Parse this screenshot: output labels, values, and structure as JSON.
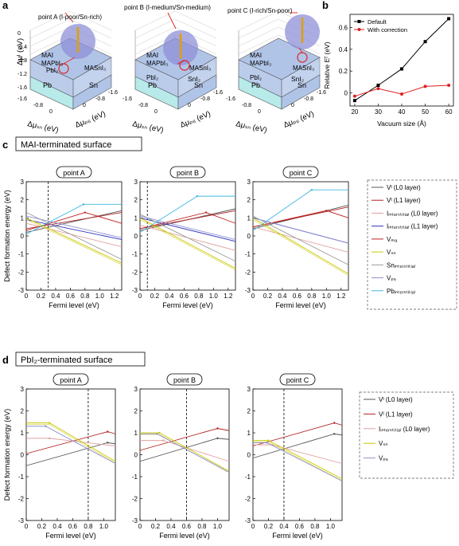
{
  "panel_labels": {
    "a": "a",
    "b": "b",
    "c": "c",
    "d": "d"
  },
  "phase_diagrams": [
    {
      "point_label": "point A (I-poor/Sn-rich)",
      "phases": {
        "mai": "MAI",
        "mapbi3": "MAPbI₃",
        "pbi2": "PbI₂",
        "masni3": "MASnI₃",
        "pb": "Pb",
        "sn": "Sn"
      },
      "z_axis_label": "Δμᴵ (eV)",
      "z_ticks": [
        "0",
        "-0.4",
        "-0.8",
        "-1.2",
        "-1.6"
      ],
      "sn_axis_label": "Δμₛₙ (eV)",
      "sn_ticks": [
        "-1.6",
        "-0.8",
        "0"
      ],
      "pb_axis_label": "Δμₚ₆ (eV)",
      "pb_ticks": [
        "0",
        "-0.8",
        "-1.6"
      ]
    },
    {
      "point_label": "point B (I-medium/Sn-medium)",
      "phases": {
        "mai": "MAI",
        "mapbi3": "MAPbI₃",
        "pbi2": "PbI₂",
        "masni3": "MASnI₃",
        "sni2": "SnI₂",
        "pb": "Pb",
        "sn": "Sn"
      },
      "sn_axis_label": "Δμₛₙ (eV)",
      "sn_ticks": [
        "-1.6",
        "-0.8",
        "0"
      ],
      "pb_axis_label": "Δμₚ₆ (eV)",
      "pb_ticks": [
        "0",
        "-0.8",
        "-1.6"
      ]
    },
    {
      "point_label": "point C (I-rich/Sn-poor)",
      "phases": {
        "mai": "MAI",
        "mapbi3": "MAPbI₃",
        "pbi2": "PbI₂",
        "masni3": "MASnI₃",
        "sni2": "SnI₂",
        "pb": "Pb",
        "sn": "Sn"
      },
      "sn_axis_label": "Δμₛₙ (eV)",
      "sn_ticks": [
        "-1.6",
        "-0.8",
        "0"
      ],
      "pb_axis_label": "Δμₚ₆ (eV)",
      "pb_ticks": [
        "0",
        "-0.8",
        "-1.6"
      ]
    }
  ],
  "section_c_title": "MAI-terminated surface",
  "section_d_title": "PbI₂-terminated surface",
  "colors": {
    "default": "#000000",
    "correction": "#e02020",
    "vi_l0": "#555555",
    "vi_l1": "#b02020",
    "ii_l0": "#e0a0a0",
    "ii_l1": "#3030c0",
    "vma": "#c02020",
    "vsn": "#c8c800",
    "sni": "#9a9a9a",
    "vpb": "#9090d0",
    "pbi": "#40b8e0",
    "phase_face": "#b0c4e8",
    "pb_face": "#b8eaea",
    "sphere": "#8f90d8",
    "marker": "#e02020"
  },
  "chart_data": [
    {
      "id": "b",
      "type": "line",
      "xlabel": "Vacuum size (Å)",
      "ylabel": "Relative Eᶠ (eV)",
      "x": [
        20,
        30,
        40,
        50,
        60
      ],
      "xlim": [
        18,
        62
      ],
      "ylim": [
        -0.12,
        0.72
      ],
      "xticks": [
        "20",
        "30",
        "40",
        "50",
        "60"
      ],
      "yticks": [
        "0",
        "0.2",
        "0.4",
        "0.6"
      ],
      "legend_position": "top-left",
      "series": [
        {
          "name": "Default",
          "values": [
            -0.07,
            0.07,
            0.22,
            0.47,
            0.68
          ]
        },
        {
          "name": "With correction",
          "values": [
            -0.03,
            0.04,
            -0.01,
            0.06,
            0.07
          ]
        }
      ]
    },
    {
      "id": "c",
      "type": "line",
      "ylabel": "Defect formation energy (eV)",
      "xlabel": "Fermi level (eV)",
      "xlim": [
        0,
        1.3
      ],
      "ylim": [
        -3,
        3
      ],
      "xticks": [
        "0",
        "0.2",
        "0.4",
        "0.6",
        "0.8",
        "1.0",
        "1.2"
      ],
      "yticks": [
        "-3",
        "-2",
        "-1",
        "0",
        "1",
        "2",
        "3"
      ],
      "legend": [
        "Vᴵ (L0 layer)",
        "Vᴵ (L1 layer)",
        "Iᵢₙₜₑᵣₛₜᵢₜᵢₐₗ (L0 layer)",
        "Iᵢₙₜₑᵣₛₜᵢₜᵢₐₗ (L1 layer)",
        "Vₘₐ",
        "Vₛₙ",
        "Snᵢₙₜₑᵣₛₜᵢₜᵢₐₗ",
        "Vₚ₆",
        "Pbᵢₙₜₑᵣₛₜᵢₜᵢₐₗ"
      ],
      "panels": [
        {
          "title": "point A",
          "vline": 0.3,
          "series": [
            {
              "key": "vi_l0",
              "x": [
                0,
                1.3
              ],
              "y": [
                0.2,
                1.4
              ]
            },
            {
              "key": "vi_l1",
              "x": [
                0,
                1.3
              ],
              "y": [
                0.4,
                1.3
              ]
            },
            {
              "key": "ii_l0",
              "x": [
                0,
                1.3
              ],
              "y": [
                0.7,
                -0.6
              ]
            },
            {
              "key": "ii_l1",
              "x": [
                0,
                1.3
              ],
              "y": [
                0.9,
                -0.2
              ]
            },
            {
              "key": "vma",
              "x": [
                0,
                0.8,
                1.3
              ],
              "y": [
                0.3,
                1.3,
                0.7
              ]
            },
            {
              "key": "vsn",
              "x": [
                0,
                1.3
              ],
              "y": [
                1.0,
                -1.5
              ]
            },
            {
              "key": "sni",
              "x": [
                0,
                1.3
              ],
              "y": [
                1.3,
                -1.3
              ]
            },
            {
              "key": "vpb",
              "x": [
                0,
                1.3
              ],
              "y": [
                1.1,
                -0.1
              ]
            },
            {
              "key": "pbi",
              "x": [
                0,
                0.78,
                1.3
              ],
              "y": [
                0.1,
                1.75,
                1.75
              ]
            }
          ]
        },
        {
          "title": "point B",
          "vline": 0.1,
          "series": [
            {
              "key": "vi_l0",
              "x": [
                0,
                1.3
              ],
              "y": [
                0.3,
                1.5
              ]
            },
            {
              "key": "vi_l1",
              "x": [
                0,
                1.3
              ],
              "y": [
                0.4,
                1.4
              ]
            },
            {
              "key": "ii_l0",
              "x": [
                0,
                1.3
              ],
              "y": [
                0.6,
                -0.8
              ]
            },
            {
              "key": "ii_l1",
              "x": [
                0,
                1.3
              ],
              "y": [
                1.0,
                -0.3
              ]
            },
            {
              "key": "vma",
              "x": [
                0,
                0.9,
                1.3
              ],
              "y": [
                0.4,
                1.3,
                0.7
              ]
            },
            {
              "key": "vsn",
              "x": [
                0,
                1.3
              ],
              "y": [
                1.0,
                -1.8
              ]
            },
            {
              "key": "sni",
              "x": [
                0,
                1.3
              ],
              "y": [
                1.2,
                -1.4
              ]
            },
            {
              "key": "vpb",
              "x": [
                0,
                1.3
              ],
              "y": [
                1.1,
                -0.2
              ]
            },
            {
              "key": "pbi",
              "x": [
                0,
                0.78,
                1.3
              ],
              "y": [
                0.2,
                2.2,
                2.2
              ]
            }
          ]
        },
        {
          "title": "point C",
          "vline": null,
          "series": [
            {
              "key": "vi_l0",
              "x": [
                0,
                1.3
              ],
              "y": [
                0.4,
                1.7
              ]
            },
            {
              "key": "vi_l1",
              "x": [
                0,
                1.3
              ],
              "y": [
                0.5,
                1.6
              ]
            },
            {
              "key": "ii_l0",
              "x": [
                0,
                1.3
              ],
              "y": [
                0.5,
                -0.9
              ]
            },
            {
              "key": "ii_l1",
              "x": [
                0,
                1.3
              ],
              "y": [
                1.0,
                -0.4
              ]
            },
            {
              "key": "vma",
              "x": [
                0,
                1.0,
                1.3
              ],
              "y": [
                0.5,
                1.4,
                1.0
              ]
            },
            {
              "key": "vsn",
              "x": [
                0,
                1.3
              ],
              "y": [
                1.0,
                -2.1
              ]
            },
            {
              "key": "sni",
              "x": [
                0,
                1.3
              ],
              "y": [
                1.1,
                -1.6
              ]
            },
            {
              "key": "vpb",
              "x": [
                0,
                1.3
              ],
              "y": [
                1.0,
                -0.4
              ]
            },
            {
              "key": "pbi",
              "x": [
                0,
                0.8,
                1.3
              ],
              "y": [
                0.3,
                2.55,
                2.55
              ]
            }
          ]
        }
      ]
    },
    {
      "id": "d",
      "type": "line",
      "ylabel": "Defect formation energy (eV)",
      "xlabel": "Fermi level (eV)",
      "xlim": [
        0,
        1.15
      ],
      "ylim": [
        -3,
        3
      ],
      "xticks": [
        "0",
        "0.2",
        "0.4",
        "0.6",
        "0.8",
        "1.0"
      ],
      "yticks": [
        "-3",
        "-2",
        "-1",
        "0",
        "1",
        "2",
        "3"
      ],
      "legend": [
        "Vᴵ (L0 layer)",
        "Vᴵ (L1 layer)",
        "Iᵢₙₜₑᵣₛₜᵢₜᵢₐₗ (L0 layer)",
        "Vₛₙ",
        "Vₚ₆"
      ],
      "panels": [
        {
          "title": "point A",
          "vline": 0.8,
          "series": [
            {
              "key": "vi_l0",
              "x": [
                0,
                1.05,
                1.15
              ],
              "y": [
                -0.5,
                0.55,
                0.5
              ]
            },
            {
              "key": "vi_l1",
              "x": [
                0,
                1.05,
                1.15
              ],
              "y": [
                0.05,
                1.05,
                0.95
              ]
            },
            {
              "key": "ii_l0",
              "x": [
                0,
                0.3,
                1.15
              ],
              "y": [
                0.75,
                0.75,
                0.4
              ]
            },
            {
              "key": "vsn",
              "x": [
                0,
                0.3,
                1.15
              ],
              "y": [
                1.45,
                1.45,
                -0.3
              ]
            },
            {
              "key": "vpb",
              "x": [
                0,
                0.25,
                1.15
              ],
              "y": [
                1.3,
                1.3,
                -0.4
              ]
            }
          ]
        },
        {
          "title": "point B",
          "vline": 0.6,
          "series": [
            {
              "key": "vi_l0",
              "x": [
                0,
                1.0,
                1.15
              ],
              "y": [
                -0.3,
                0.75,
                0.7
              ]
            },
            {
              "key": "vi_l1",
              "x": [
                0,
                1.0,
                1.15
              ],
              "y": [
                0.2,
                1.2,
                1.1
              ]
            },
            {
              "key": "ii_l0",
              "x": [
                0,
                0.3,
                1.15
              ],
              "y": [
                0.65,
                0.65,
                -0.3
              ]
            },
            {
              "key": "vsn",
              "x": [
                0,
                0.25,
                1.15
              ],
              "y": [
                1.0,
                1.0,
                -0.75
              ]
            },
            {
              "key": "vpb",
              "x": [
                0,
                0.22,
                1.15
              ],
              "y": [
                0.95,
                0.95,
                -0.8
              ]
            }
          ]
        },
        {
          "title": "point C",
          "vline": 0.4,
          "series": [
            {
              "key": "vi_l0",
              "x": [
                0,
                1.05,
                1.15
              ],
              "y": [
                -0.15,
                0.95,
                0.9
              ]
            },
            {
              "key": "vi_l1",
              "x": [
                0,
                1.05,
                1.15
              ],
              "y": [
                0.4,
                1.45,
                1.35
              ]
            },
            {
              "key": "ii_l0",
              "x": [
                0,
                0.25,
                1.15
              ],
              "y": [
                0.45,
                0.45,
                -0.4
              ]
            },
            {
              "key": "vsn",
              "x": [
                0,
                0.2,
                1.15
              ],
              "y": [
                0.65,
                0.65,
                -1.1
              ]
            },
            {
              "key": "vpb",
              "x": [
                0,
                0.18,
                1.15
              ],
              "y": [
                0.55,
                0.55,
                -1.2
              ]
            }
          ]
        }
      ]
    }
  ]
}
